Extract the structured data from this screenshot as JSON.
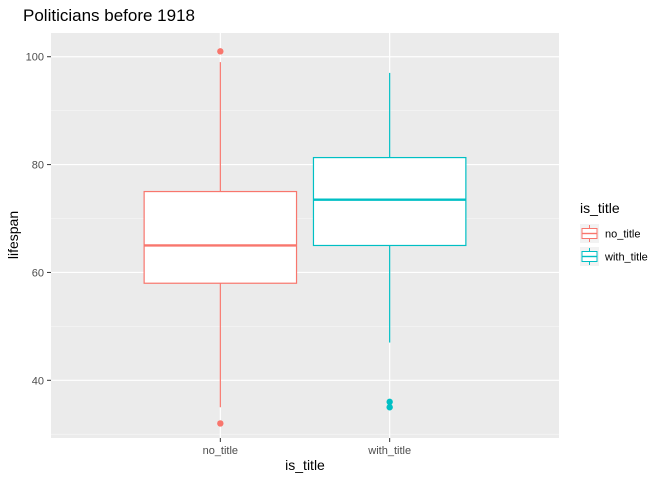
{
  "chart_data": {
    "type": "boxplot",
    "title": "Politicians before 1918",
    "xlabel": "is_title",
    "ylabel": "lifespan",
    "ylim": [
      29.3,
      104.4
    ],
    "yticks": [
      40,
      60,
      80,
      100
    ],
    "grid": true,
    "legend": {
      "title": "is_title",
      "position": "right",
      "entries": [
        "no_title",
        "with_title"
      ]
    },
    "categories": [
      "no_title",
      "with_title"
    ],
    "boxes": [
      {
        "category": "no_title",
        "color": "#F8766D",
        "whisker_low": 35,
        "q1": 58,
        "median": 65,
        "q3": 75,
        "whisker_high": 99,
        "outliers": [
          101,
          32
        ]
      },
      {
        "category": "with_title",
        "color": "#00BFC4",
        "whisker_low": 47,
        "q1": 65,
        "median": 73.5,
        "q3": 81.3,
        "whisker_high": 97,
        "outliers": [
          36,
          35
        ]
      }
    ]
  }
}
